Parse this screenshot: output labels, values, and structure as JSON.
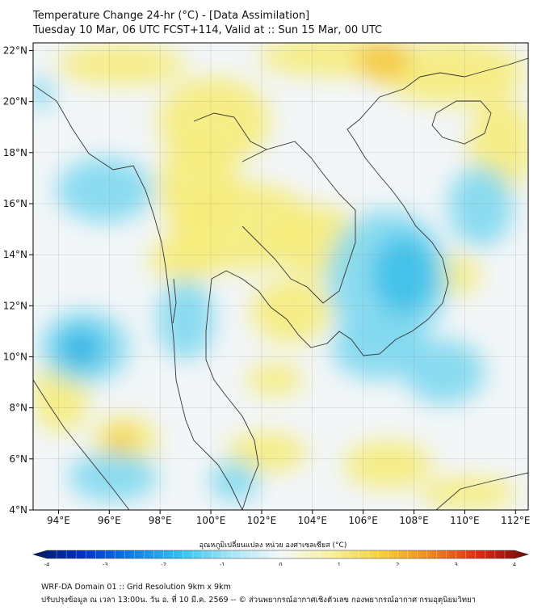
{
  "title": {
    "line1": "Temperature Change 24-hr (°C) - [Data Assimilation]",
    "line2": "Tuesday 10 Mar, 06 UTC FCST+114, Valid at :: Sun 15 Mar, 00 UTC"
  },
  "map": {
    "lon_range": [
      93,
      112.5
    ],
    "lat_range": [
      4,
      22.3
    ],
    "lon_ticks": [
      {
        "value": 94,
        "label": "94°E"
      },
      {
        "value": 96,
        "label": "96°E"
      },
      {
        "value": 98,
        "label": "98°E"
      },
      {
        "value": 100,
        "label": "100°E"
      },
      {
        "value": 102,
        "label": "102°E"
      },
      {
        "value": 104,
        "label": "104°E"
      },
      {
        "value": 106,
        "label": "106°E"
      },
      {
        "value": 108,
        "label": "108°E"
      },
      {
        "value": 110,
        "label": "110°E"
      },
      {
        "value": 112,
        "label": "112°E"
      }
    ],
    "lat_ticks": [
      {
        "value": 4,
        "label": "4°N"
      },
      {
        "value": 6,
        "label": "6°N"
      },
      {
        "value": 8,
        "label": "8°N"
      },
      {
        "value": 10,
        "label": "10°N"
      },
      {
        "value": 12,
        "label": "12°N"
      },
      {
        "value": 14,
        "label": "14°N"
      },
      {
        "value": 16,
        "label": "16°N"
      },
      {
        "value": 18,
        "label": "18°N"
      },
      {
        "value": 20,
        "label": "20°N"
      },
      {
        "value": 22,
        "label": "22°N"
      }
    ],
    "colors": {
      "neutral": "#f2f6f8",
      "warm": "#f6ec7a",
      "warm_strong": "#f5c63a",
      "cool": "#7fd8ef",
      "cool_strong": "#3cc0ea",
      "cool_deep": "#2a8fd8",
      "coastline": "#333333"
    }
  },
  "colorbar": {
    "label": "อุณหภูมิเปลี่ยนแปลง หน่วย องศาเซลเซียส (°C)",
    "min": -4,
    "max": 4,
    "ticks": [
      {
        "value": -4,
        "label": "-4"
      },
      {
        "value": -3,
        "label": "-3"
      },
      {
        "value": -2,
        "label": "-2"
      },
      {
        "value": -1,
        "label": "-1"
      },
      {
        "value": 0,
        "label": "0"
      },
      {
        "value": 1,
        "label": "1"
      },
      {
        "value": 2,
        "label": "2"
      },
      {
        "value": 3,
        "label": "3"
      },
      {
        "value": 4,
        "label": "4"
      }
    ],
    "stops": [
      "#001a5c",
      "#0030c8",
      "#0f7fe8",
      "#34c2f0",
      "#a5e6f5",
      "#f4f8fa",
      "#f7f1a0",
      "#f5d23c",
      "#f08a1e",
      "#e02a14",
      "#6e0a0a"
    ]
  },
  "footer": {
    "line1": "WRF-DA Domain 01 :: Grid Resolution 9km x 9km",
    "line2": "ปรับปรุงข้อมูล ณ เวลา 13:00น. วัน อ. ที่ 10 มี.ค. 2569 -- © ส่วนพยากรณ์อากาศเชิงตัวเลข กองพยากรณ์อากาศ กรมอุตุนิยมวิทยา"
  }
}
